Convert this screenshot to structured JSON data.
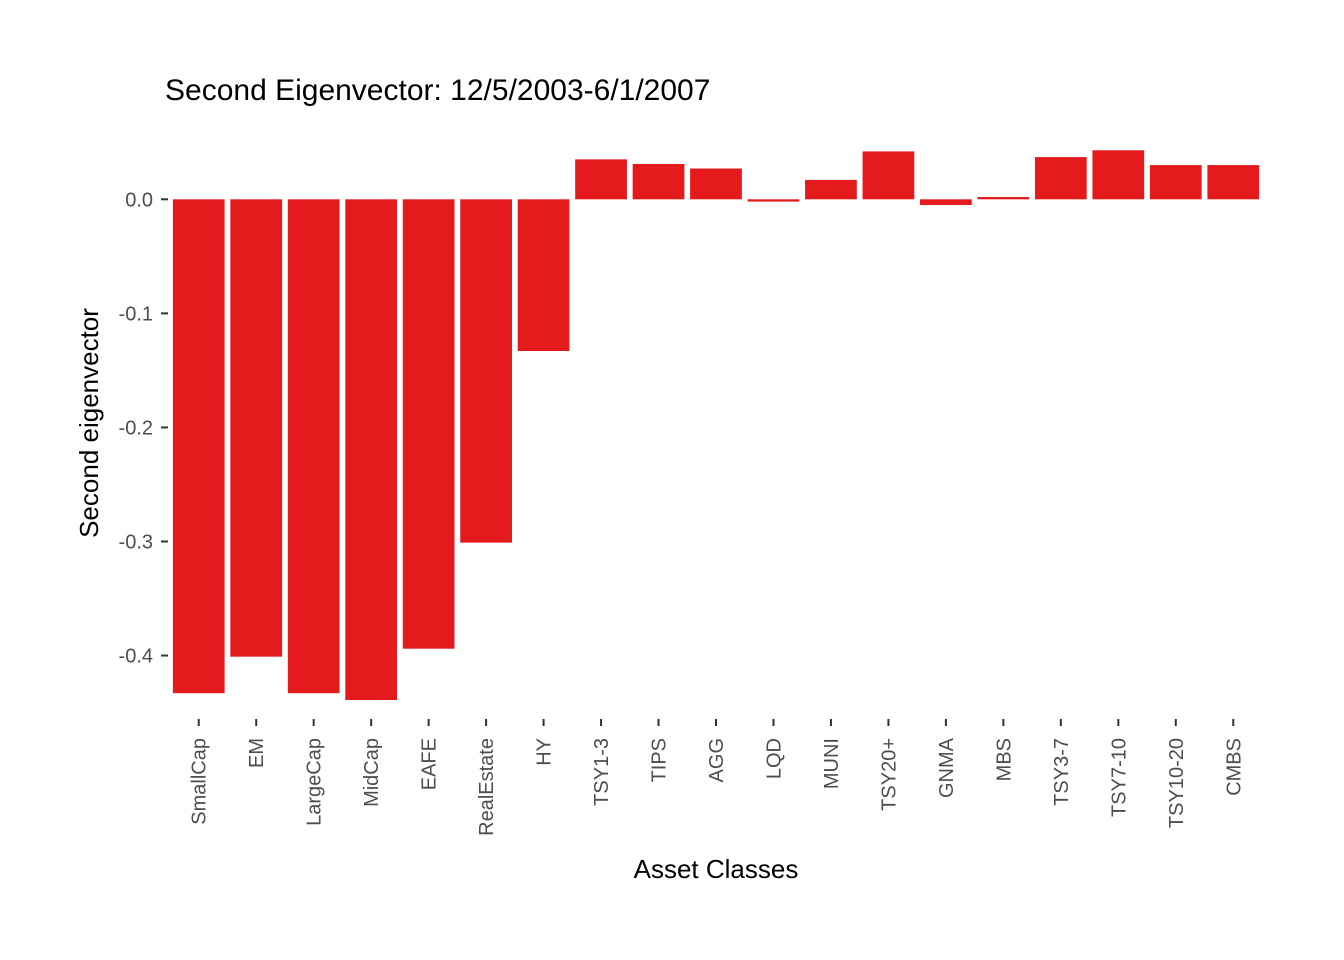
{
  "chart_data": {
    "type": "bar",
    "title": "Second Eigenvector: 12/5/2003-6/1/2007",
    "xlabel": "Asset Classes",
    "ylabel": "Second eigenvector",
    "categories": [
      "SmallCap",
      "EM",
      "LargeCap",
      "MidCap",
      "EAFE",
      "RealEstate",
      "HY",
      "TSY1-3",
      "TIPS",
      "AGG",
      "LQD",
      "MUNI",
      "TSY20+",
      "GNMA",
      "MBS",
      "TSY3-7",
      "TSY7-10",
      "TSY10-20",
      "CMBS"
    ],
    "values": [
      -0.433,
      -0.401,
      -0.433,
      -0.439,
      -0.394,
      -0.301,
      -0.133,
      0.035,
      0.031,
      0.027,
      -0.002,
      0.017,
      0.042,
      -0.005,
      0.002,
      0.037,
      0.043,
      0.03,
      0.03
    ],
    "yticks": [
      0.0,
      -0.1,
      -0.2,
      -0.3,
      -0.4
    ],
    "ytick_labels": [
      "0.0",
      "-0.1",
      "-0.2",
      "-0.3",
      "-0.4"
    ],
    "ylim": [
      -0.446,
      0.052
    ],
    "bar_color": "#E41A1C",
    "grid": false
  }
}
